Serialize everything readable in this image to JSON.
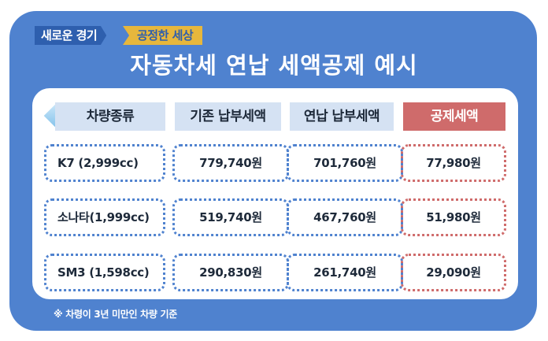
{
  "badges": {
    "left": "새로운 경기",
    "right": "공정한 세상"
  },
  "title": "자동차세 연납 세액공제 예시",
  "headers": [
    "차량종류",
    "기존 납부세액",
    "연납 납부세액",
    "공제세액"
  ],
  "rows": [
    {
      "car": "K7 (2,999cc)",
      "base": "779,740원",
      "annual": "701,760원",
      "deduction": "77,980원"
    },
    {
      "car": "소나타(1,999cc)",
      "base": "519,740원",
      "annual": "467,760원",
      "deduction": "51,980원"
    },
    {
      "car": "SM3 (1,598cc)",
      "base": "290,830원",
      "annual": "261,740원",
      "deduction": "29,090원"
    }
  ],
  "note": "※ 차령이 3년 미만인 차량 기준",
  "colors": {
    "panel": "#4f82cf",
    "header_blue": "#d5e2f3",
    "header_red": "#cf6b6b",
    "badge_yellow": "#e7b73c"
  }
}
